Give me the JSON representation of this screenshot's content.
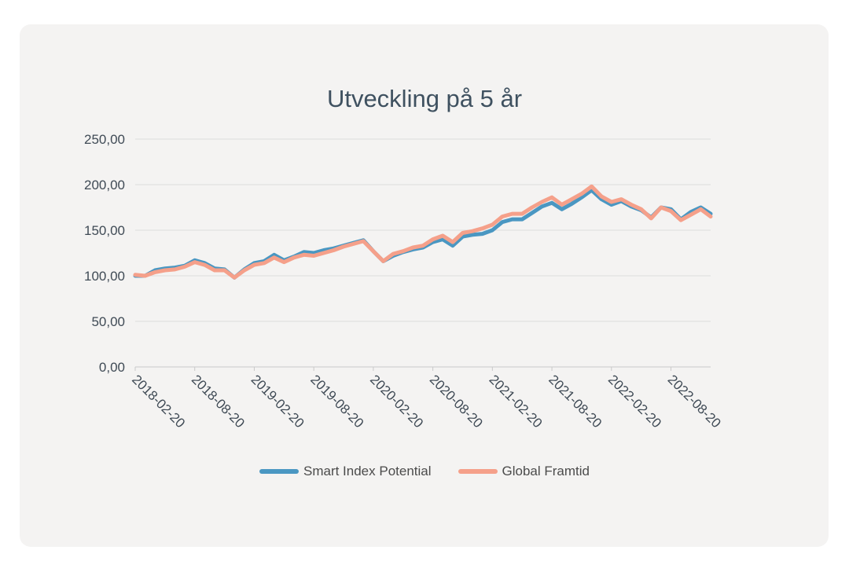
{
  "chart_data": {
    "type": "line",
    "title": "Utveckling på 5 år",
    "ylim": [
      0,
      250
    ],
    "y_ticks": [
      "0,00",
      "50,00",
      "100,00",
      "150,00",
      "200,00",
      "250,00"
    ],
    "x_tick_labels": [
      "2018-02-20",
      "2018-08-20",
      "2019-02-20",
      "2019-08-20",
      "2020-02-20",
      "2020-08-20",
      "2021-02-20",
      "2021-08-20",
      "2022-02-20",
      "2022-08-20"
    ],
    "x_points_per_tick": 6,
    "grid": true,
    "legend_position": "bottom",
    "series": [
      {
        "name": "Smart Index Potential",
        "color": "#4a97c2",
        "values": [
          100,
          100,
          106,
          108,
          109,
          111,
          117,
          114,
          108,
          107,
          98,
          107,
          114,
          116,
          123,
          117,
          121,
          126,
          125,
          128,
          130,
          133,
          136,
          139,
          127,
          116,
          122,
          126,
          129,
          131,
          137,
          140,
          133,
          143,
          145,
          146,
          150,
          159,
          162,
          162,
          169,
          176,
          180,
          173,
          179,
          186,
          194,
          184,
          178,
          182,
          176,
          172,
          164,
          175,
          173,
          162,
          170,
          175,
          168
        ]
      },
      {
        "name": "Global Framtid",
        "color": "#f5a08a",
        "values": [
          101,
          100,
          104,
          106,
          107,
          110,
          115,
          112,
          106,
          106,
          98,
          106,
          112,
          114,
          120,
          115,
          120,
          123,
          122,
          125,
          128,
          132,
          135,
          138,
          127,
          116,
          124,
          127,
          131,
          133,
          140,
          144,
          137,
          147,
          149,
          152,
          156,
          165,
          168,
          168,
          175,
          181,
          186,
          178,
          184,
          190,
          198,
          187,
          181,
          184,
          178,
          173,
          163,
          175,
          171,
          161,
          167,
          173,
          165
        ]
      }
    ]
  }
}
